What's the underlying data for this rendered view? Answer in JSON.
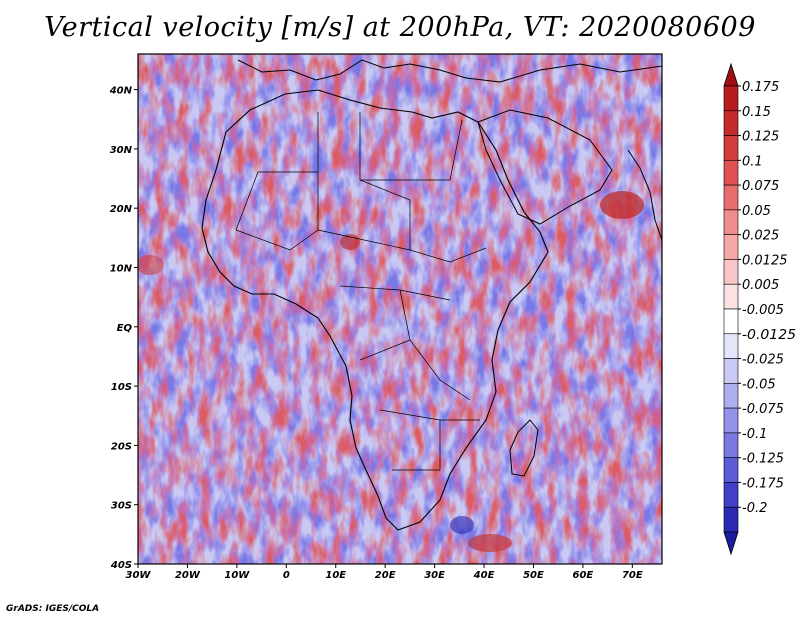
{
  "title": "Vertical velocity [m/s] at 200hPa, VT: 2020080609",
  "credit": "GrADS: IGES/COLA",
  "map": {
    "lon_range": [
      -30,
      76
    ],
    "lat_range": [
      -40,
      46
    ],
    "lon_ticks": [
      {
        "value": -30,
        "label": "30W"
      },
      {
        "value": -20,
        "label": "20W"
      },
      {
        "value": -10,
        "label": "10W"
      },
      {
        "value": 0,
        "label": "0"
      },
      {
        "value": 10,
        "label": "10E"
      },
      {
        "value": 20,
        "label": "20E"
      },
      {
        "value": 30,
        "label": "30E"
      },
      {
        "value": 40,
        "label": "40E"
      },
      {
        "value": 50,
        "label": "50E"
      },
      {
        "value": 60,
        "label": "60E"
      },
      {
        "value": 70,
        "label": "70E"
      }
    ],
    "lat_ticks": [
      {
        "value": 40,
        "label": "40N"
      },
      {
        "value": 30,
        "label": "30N"
      },
      {
        "value": 20,
        "label": "20N"
      },
      {
        "value": 10,
        "label": "10N"
      },
      {
        "value": 0,
        "label": "EQ"
      },
      {
        "value": -10,
        "label": "10S"
      },
      {
        "value": -20,
        "label": "20S"
      },
      {
        "value": -30,
        "label": "30S"
      },
      {
        "value": -40,
        "label": "40S"
      }
    ]
  },
  "colorbar": {
    "levels": [
      {
        "label": "0.175",
        "color": "#b81c1c"
      },
      {
        "label": "0.15",
        "color": "#c42a2a"
      },
      {
        "label": "0.125",
        "color": "#d43c3c"
      },
      {
        "label": "0.1",
        "color": "#e05252"
      },
      {
        "label": "0.075",
        "color": "#e86e6e"
      },
      {
        "label": "0.05",
        "color": "#ef8c8c"
      },
      {
        "label": "0.025",
        "color": "#f4a8a8"
      },
      {
        "label": "0.0125",
        "color": "#f8c6c6"
      },
      {
        "label": "0.005",
        "color": "#fbe2e2"
      },
      {
        "label": "-0.005",
        "color": "#ffffff"
      },
      {
        "label": "-0.0125",
        "color": "#e4e4fb"
      },
      {
        "label": "-0.025",
        "color": "#c9c9f6"
      },
      {
        "label": "-0.05",
        "color": "#aeaef0"
      },
      {
        "label": "-0.075",
        "color": "#9393e9"
      },
      {
        "label": "-0.1",
        "color": "#7878e0"
      },
      {
        "label": "-0.125",
        "color": "#5c5cd6"
      },
      {
        "label": "-0.175",
        "color": "#4040c8"
      },
      {
        "label": "-0.2",
        "color": "#2a2ab4"
      }
    ],
    "top_arrow_color": "#a01010",
    "bottom_arrow_color": "#1c1ca0"
  }
}
